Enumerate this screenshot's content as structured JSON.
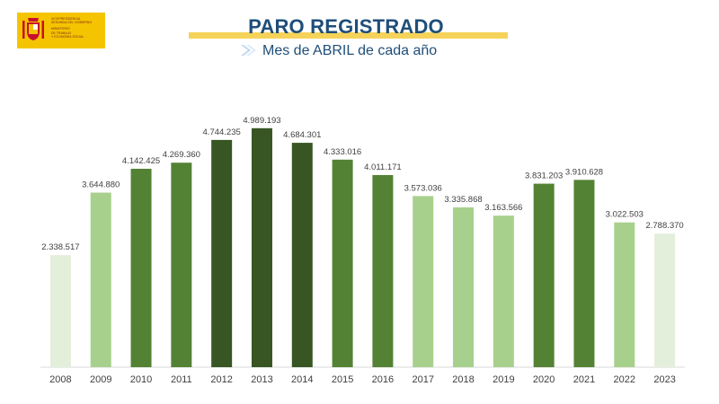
{
  "logo": {
    "line1": "VICEPRESIDENCIA",
    "line2": "SEGUNDA DEL GOBIERNO",
    "line3": "MINISTERIO",
    "line4": "DE TRABAJO",
    "line5": "Y ECONOMÍA SOCIAL"
  },
  "colors": {
    "lightest": "#e3efda",
    "light": "#a8d08d",
    "medium": "#548235",
    "dark": "#375623",
    "title": "#1f4e79"
  },
  "chart_data": {
    "type": "bar",
    "title": "PARO REGISTRADO",
    "subtitle": "Mes de ABRIL de cada año",
    "categories": [
      "2008",
      "2009",
      "2010",
      "2011",
      "2012",
      "2013",
      "2014",
      "2015",
      "2016",
      "2017",
      "2018",
      "2019",
      "2020",
      "2021",
      "2022",
      "2023"
    ],
    "values": [
      2338517,
      3644880,
      4142425,
      4269360,
      4744235,
      4989193,
      4684301,
      4333016,
      4011171,
      3573036,
      3335868,
      3163566,
      3831203,
      3910628,
      3022503,
      2788370
    ],
    "value_labels": [
      "2.338.517",
      "3.644.880",
      "4.142.425",
      "4.269.360",
      "4.744.235",
      "4.989.193",
      "4.684.301",
      "4.333.016",
      "4.011.171",
      "3.573.036",
      "3.335.868",
      "3.163.566",
      "3.831.203",
      "3.910.628",
      "3.022.503",
      "2.788.370"
    ],
    "bar_colors": [
      "lightest",
      "light",
      "medium",
      "medium",
      "dark",
      "dark",
      "dark",
      "medium",
      "medium",
      "light",
      "light",
      "light",
      "medium",
      "medium",
      "light",
      "lightest"
    ],
    "xlabel": "",
    "ylabel": "",
    "ylim": [
      0,
      5000000
    ],
    "grid": false,
    "legend": "none"
  }
}
